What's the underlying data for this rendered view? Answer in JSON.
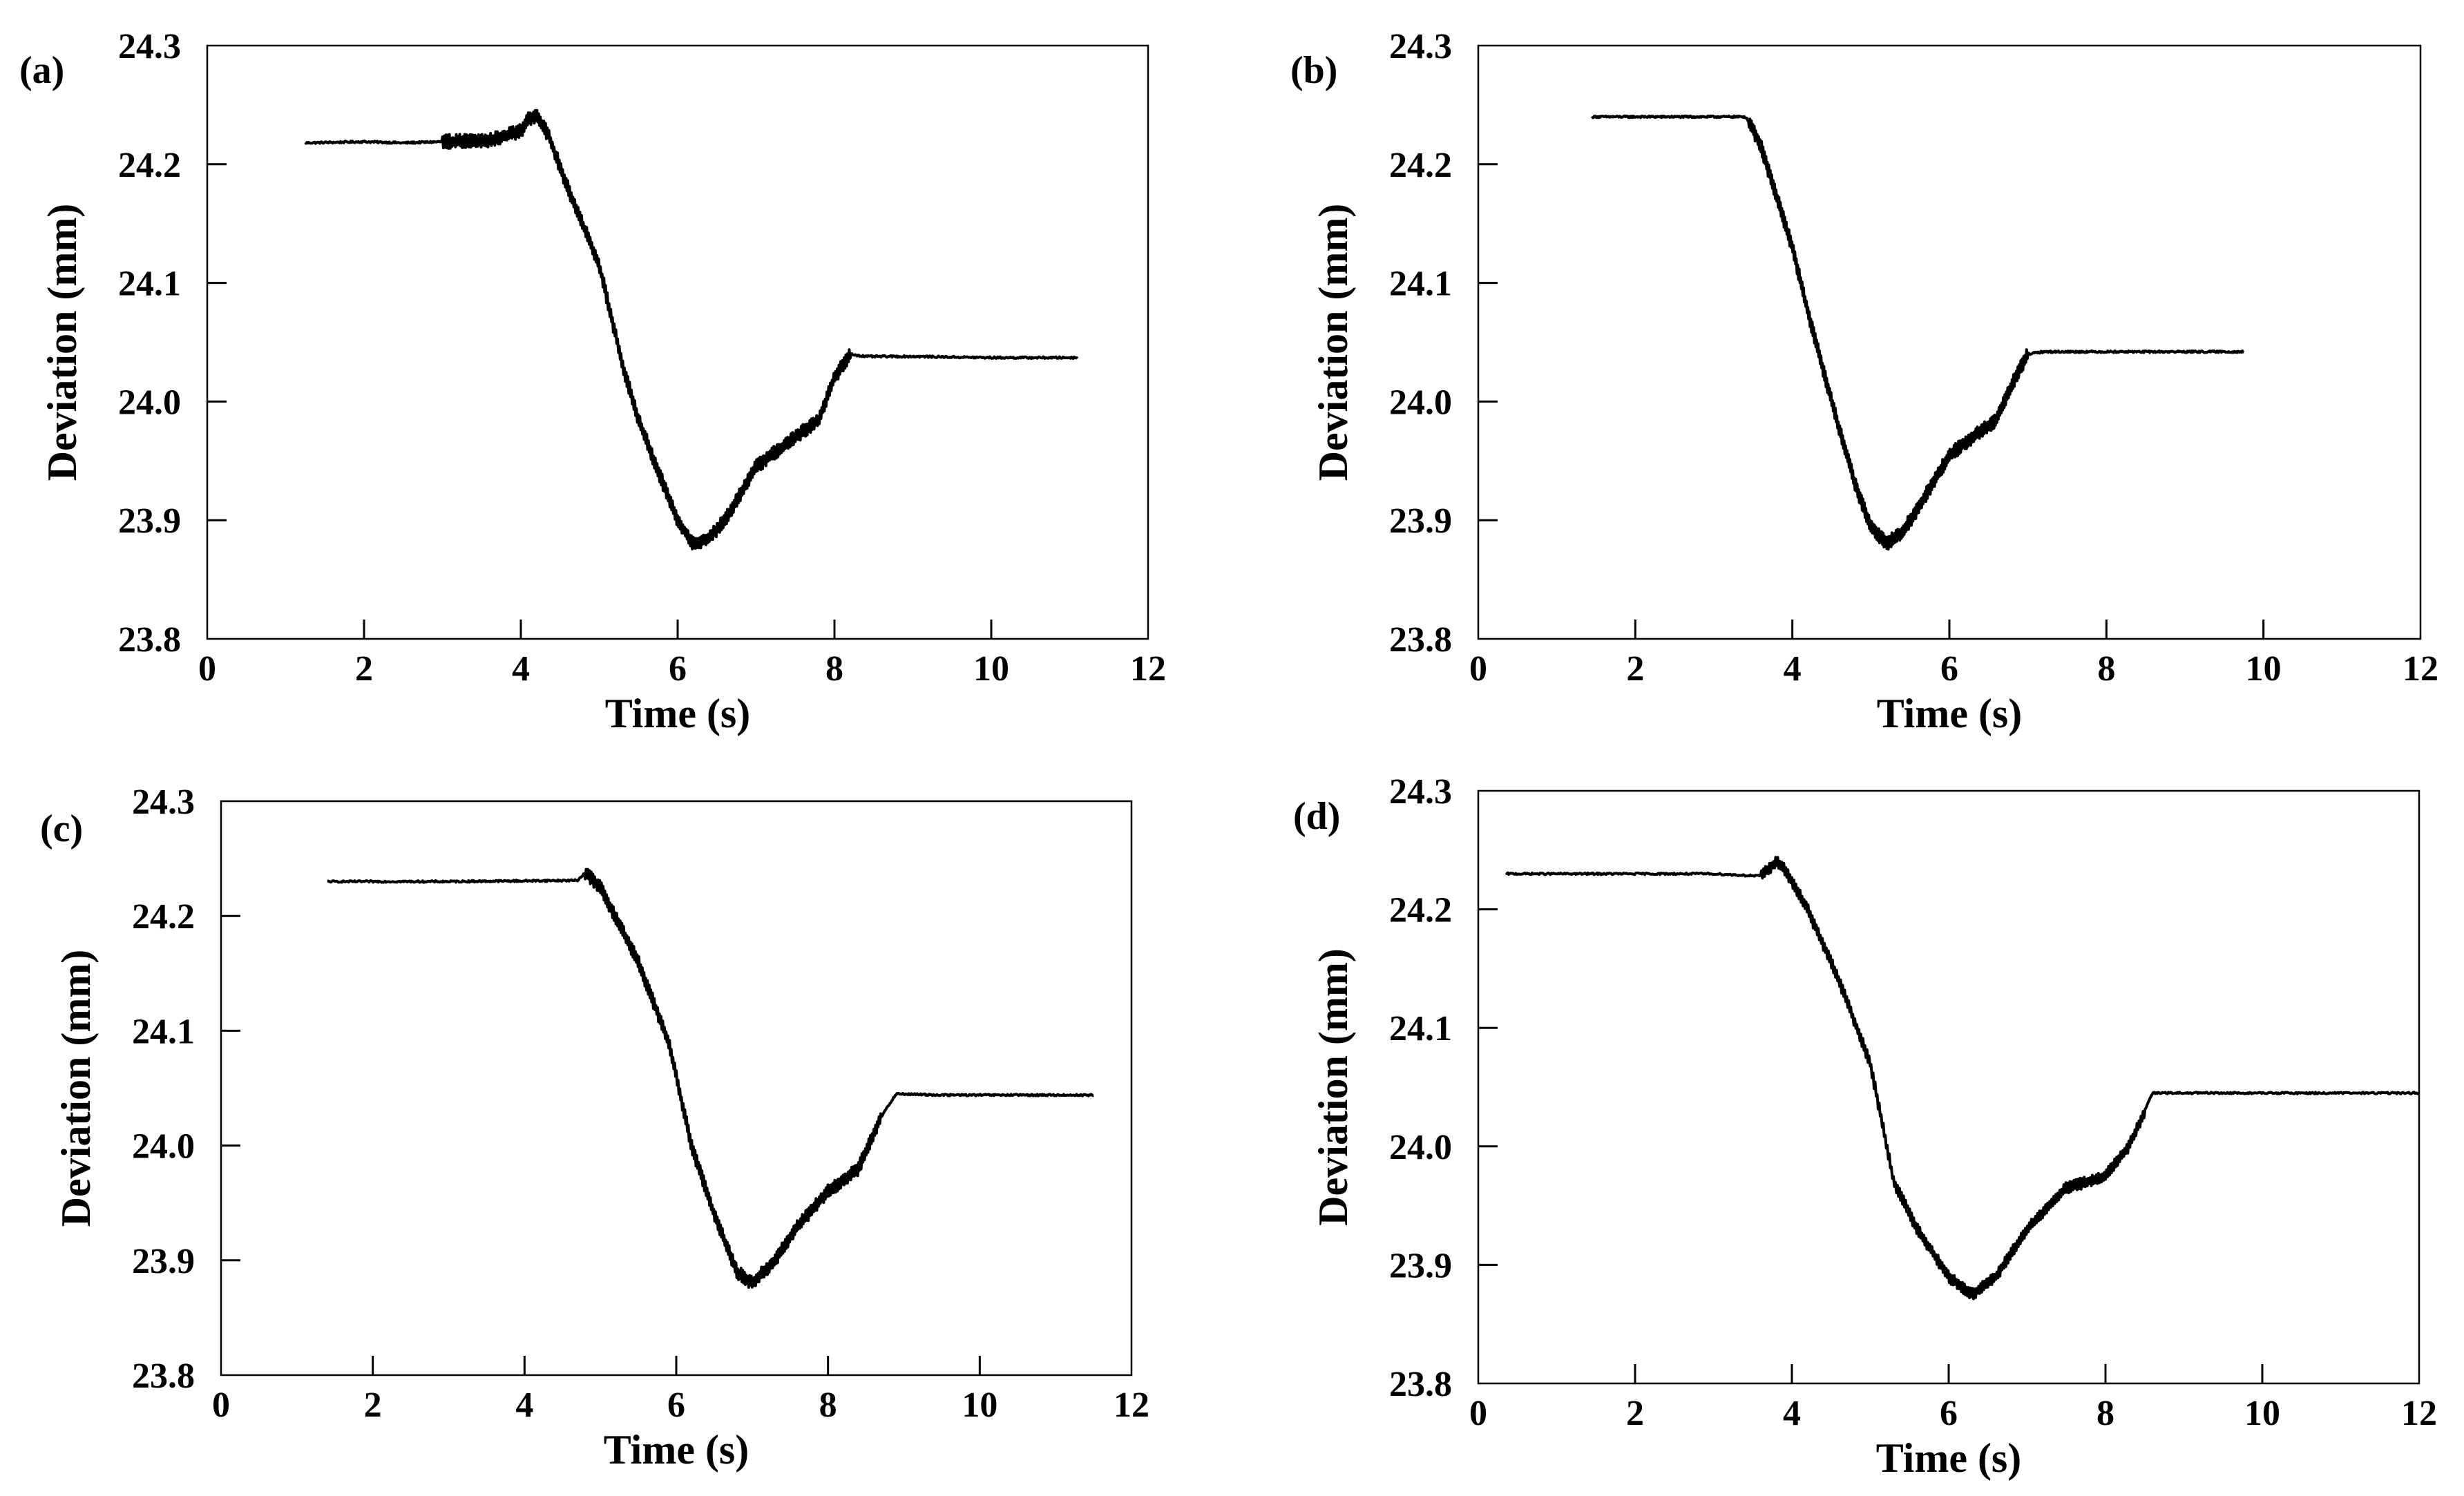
{
  "chart_data": [
    {
      "type": "line",
      "panel_label": "(a)",
      "xlabel": "Time (s)",
      "ylabel": "Deviation (mm)",
      "xlim": [
        0,
        12
      ],
      "ylim": [
        23.8,
        24.3
      ],
      "xticks": [
        "0",
        "2",
        "4",
        "6",
        "8",
        "10",
        "12"
      ],
      "yticks": [
        "23.8",
        "23.9",
        "24.0",
        "24.1",
        "24.2",
        "24.3"
      ],
      "grid": false,
      "series": [
        {
          "name": "Deviation",
          "noise": 0.012,
          "x": [
            1.25,
            2.0,
            2.5,
            3.0,
            3.6,
            4.0,
            4.1,
            4.2,
            4.35,
            4.6,
            5.0,
            5.3,
            5.5,
            5.7,
            6.0,
            6.2,
            6.4,
            6.6,
            7.0,
            7.5,
            7.8,
            8.0,
            8.2,
            8.4,
            9.0,
            10.0,
            11.1
          ],
          "y": [
            24.218,
            24.219,
            24.218,
            24.219,
            24.22,
            24.228,
            24.238,
            24.24,
            24.225,
            24.18,
            24.115,
            24.03,
            23.985,
            23.95,
            23.9,
            23.88,
            23.885,
            23.9,
            23.945,
            23.97,
            23.985,
            24.02,
            24.04,
            24.038,
            24.038,
            24.037,
            24.037
          ]
        }
      ]
    },
    {
      "type": "line",
      "panel_label": "(b)",
      "xlabel": "Time (s)",
      "ylabel": "Deviation (mm)",
      "xlim": [
        0,
        12
      ],
      "ylim": [
        23.8,
        24.3
      ],
      "xticks": [
        "0",
        "2",
        "4",
        "6",
        "8",
        "10",
        "12"
      ],
      "yticks": [
        "23.8",
        "23.9",
        "24.0",
        "24.1",
        "24.2",
        "24.3"
      ],
      "grid": false,
      "series": [
        {
          "name": "Deviation",
          "noise": 0.012,
          "x": [
            1.45,
            2.5,
            3.4,
            3.45,
            3.6,
            4.0,
            4.2,
            4.5,
            4.8,
            5.0,
            5.2,
            5.4,
            5.6,
            6.0,
            6.3,
            6.6,
            6.8,
            7.0,
            7.2,
            8.0,
            9.0,
            9.75
          ],
          "y": [
            24.24,
            24.24,
            24.24,
            24.236,
            24.215,
            24.13,
            24.075,
            24.0,
            23.93,
            23.895,
            23.88,
            23.89,
            23.91,
            23.955,
            23.97,
            23.985,
            24.015,
            24.04,
            24.042,
            24.042,
            24.042,
            24.042
          ]
        }
      ]
    },
    {
      "type": "line",
      "panel_label": "(c)",
      "xlabel": "Time (s)",
      "ylabel": "Deviation (mm)",
      "xlim": [
        0,
        12
      ],
      "ylim": [
        23.8,
        24.3
      ],
      "xticks": [
        "0",
        "2",
        "4",
        "6",
        "8",
        "10",
        "12"
      ],
      "yticks": [
        "23.8",
        "23.9",
        "24.0",
        "24.1",
        "24.2",
        "24.3"
      ],
      "grid": false,
      "series": [
        {
          "name": "Deviation",
          "noise": 0.012,
          "x": [
            1.4,
            3.0,
            4.7,
            4.8,
            5.0,
            5.5,
            5.9,
            6.2,
            6.5,
            6.8,
            7.0,
            7.3,
            7.6,
            8.0,
            8.4,
            8.7,
            8.9,
            9.5,
            10.5,
            11.5
          ],
          "y": [
            24.23,
            24.23,
            24.231,
            24.238,
            24.225,
            24.16,
            24.09,
            24.0,
            23.94,
            23.89,
            23.88,
            23.9,
            23.93,
            23.96,
            23.98,
            24.025,
            24.045,
            24.044,
            24.044,
            24.044
          ]
        }
      ]
    },
    {
      "type": "line",
      "panel_label": "(d)",
      "xlabel": "Time (s)",
      "ylabel": "Deviation (mm)",
      "xlim": [
        0,
        12
      ],
      "ylim": [
        23.8,
        24.3
      ],
      "xticks": [
        "0",
        "2",
        "4",
        "6",
        "8",
        "10",
        "12"
      ],
      "yticks": [
        "23.8",
        "23.9",
        "24.0",
        "24.1",
        "24.2",
        "24.3"
      ],
      "grid": false,
      "series": [
        {
          "name": "Deviation",
          "noise": 0.01,
          "x": [
            0.35,
            2.0,
            3.0,
            3.6,
            3.8,
            3.9,
            4.2,
            4.6,
            5.0,
            5.3,
            5.6,
            6.0,
            6.3,
            6.6,
            7.0,
            7.5,
            8.0,
            8.3,
            8.5,
            8.6,
            9.5,
            11.0,
            12.0
          ],
          "y": [
            24.23,
            24.23,
            24.23,
            24.228,
            24.24,
            24.235,
            24.2,
            24.14,
            24.07,
            23.97,
            23.93,
            23.89,
            23.875,
            23.89,
            23.93,
            23.965,
            23.975,
            24.0,
            24.03,
            24.045,
            24.045,
            24.045,
            24.045
          ]
        }
      ]
    }
  ]
}
